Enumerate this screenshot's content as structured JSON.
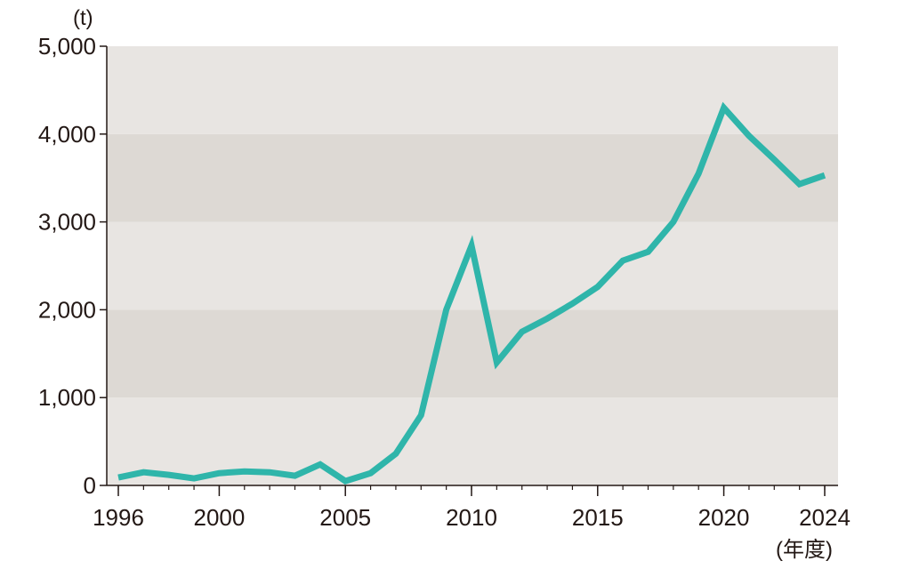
{
  "chart_data": {
    "type": "line",
    "title": "",
    "ylabel": "(t)",
    "xlabel": "(年度)",
    "x_ticks": [
      1996,
      2000,
      2005,
      2010,
      2015,
      2020,
      2024
    ],
    "y_ticks": [
      0,
      1000,
      2000,
      3000,
      4000,
      5000
    ],
    "y_tick_labels": [
      "0",
      "1,000",
      "2,000",
      "3,000",
      "4,000",
      "5,000"
    ],
    "xlim": [
      1996,
      2024
    ],
    "ylim": [
      0,
      5000
    ],
    "grid": "alternating horizontal bands",
    "colors": {
      "line": "#2fb5aa",
      "band_light": "#e8e5e2",
      "band_dark": "#ddd9d4",
      "axis": "#231815"
    },
    "series": [
      {
        "x": [
          1996,
          1997,
          1998,
          1999,
          2000,
          2001,
          2002,
          2003,
          2004,
          2005,
          2006,
          2007,
          2008,
          2009,
          2010,
          2011,
          2012,
          2013,
          2014,
          2015,
          2016,
          2017,
          2018,
          2019,
          2020,
          2021,
          2022,
          2023,
          2024
        ],
        "values": [
          90,
          150,
          120,
          80,
          140,
          160,
          150,
          110,
          240,
          50,
          140,
          360,
          800,
          2000,
          2730,
          1400,
          1750,
          1900,
          2070,
          2260,
          2560,
          2660,
          3000,
          3550,
          4300,
          3980,
          3710,
          3430,
          3530
        ]
      }
    ]
  }
}
